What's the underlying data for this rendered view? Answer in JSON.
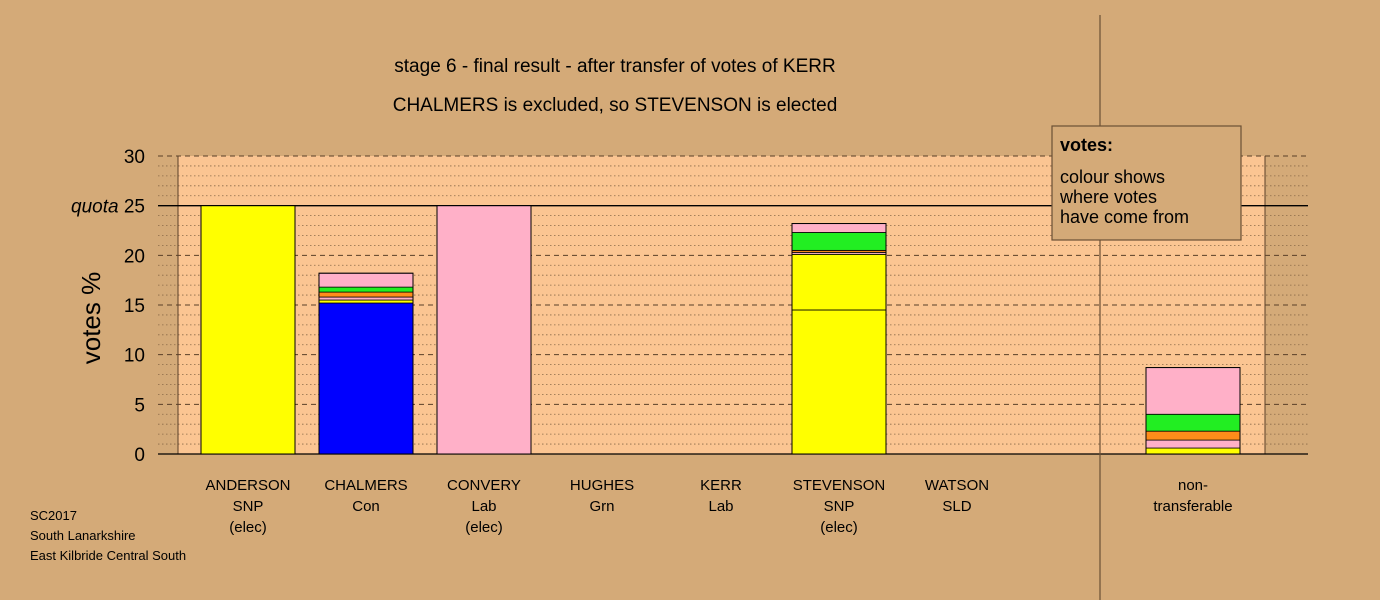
{
  "chart_data": {
    "type": "bar",
    "title": "stage 6 - final result - after transfer of votes of KERR",
    "subtitle": "CHALMERS is excluded, so STEVENSON is elected",
    "ylabel": "votes %",
    "ylim": [
      0,
      30
    ],
    "yticks": [
      0,
      5,
      10,
      15,
      20,
      25,
      30
    ],
    "quota": 25,
    "quota_label": "quota",
    "grid": true,
    "legend": {
      "title": "votes:",
      "lines": [
        "colour shows",
        "where votes",
        "have come from"
      ],
      "placement": "top-right"
    },
    "categories": [
      {
        "label": [
          "ANDERSON",
          "SNP",
          "(elec)"
        ],
        "segments": [
          {
            "source": "SNP",
            "color": "#ffff00",
            "value": 25.0
          }
        ]
      },
      {
        "label": [
          "CHALMERS",
          "Con"
        ],
        "segments": [
          {
            "source": "Con",
            "color": "#0000ff",
            "value": 15.2
          },
          {
            "source": "SNP",
            "color": "#ffff00",
            "value": 0.3
          },
          {
            "source": "Lab",
            "color": "#ffb0c8",
            "value": 0.3
          },
          {
            "source": "SLD",
            "color": "#ff8c1a",
            "value": 0.5
          },
          {
            "source": "Grn",
            "color": "#22ee22",
            "value": 0.5
          },
          {
            "source": "Lab",
            "color": "#ffb0c8",
            "value": 1.4
          }
        ]
      },
      {
        "label": [
          "CONVERY",
          "Lab",
          "(elec)"
        ],
        "segments": [
          {
            "source": "Lab",
            "color": "#ffb0c8",
            "value": 25.0
          }
        ]
      },
      {
        "label": [
          "HUGHES",
          "Grn"
        ],
        "segments": []
      },
      {
        "label": [
          "KERR",
          "Lab"
        ],
        "segments": []
      },
      {
        "label": [
          "STEVENSON",
          "SNP",
          "(elec)"
        ],
        "segments": [
          {
            "source": "SNP",
            "color": "#ffff00",
            "value": 14.5
          },
          {
            "source": "SNP",
            "color": "#ffff00",
            "value": 5.6
          },
          {
            "source": "Lab",
            "color": "#ffb0c8",
            "value": 0.2
          },
          {
            "source": "SLD",
            "color": "#ff8c1a",
            "value": 0.2
          },
          {
            "source": "Grn",
            "color": "#22ee22",
            "value": 1.8
          },
          {
            "source": "Lab",
            "color": "#ffb0c8",
            "value": 0.9
          }
        ]
      },
      {
        "label": [
          "WATSON",
          "SLD"
        ],
        "segments": []
      },
      {
        "label": [
          "non-",
          "transferable"
        ],
        "segments": [
          {
            "source": "SNP",
            "color": "#ffff00",
            "value": 0.6
          },
          {
            "source": "Lab",
            "color": "#ffb0c8",
            "value": 0.8
          },
          {
            "source": "SLD",
            "color": "#ff8c1a",
            "value": 0.9
          },
          {
            "source": "Grn",
            "color": "#22ee22",
            "value": 1.7
          },
          {
            "source": "Lab",
            "color": "#ffb0c8",
            "value": 4.7
          }
        ]
      }
    ],
    "footnote": [
      "SC2017",
      "South Lanarkshire",
      "East Kilbride Central South"
    ]
  },
  "colors": {
    "background": "#d4aa78",
    "plot_background": "#fbc592",
    "outline": "#000000"
  }
}
